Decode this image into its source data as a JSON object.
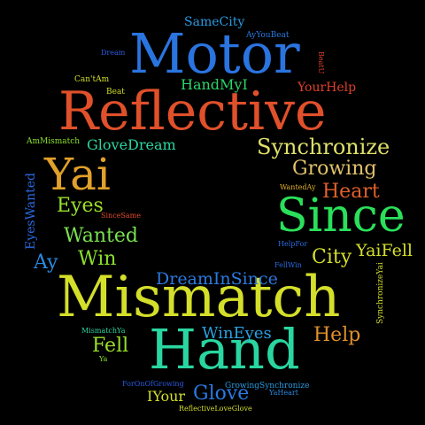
{
  "words": [
    {
      "id": "motor",
      "text": "Motor",
      "color": "#2a74e0"
    },
    {
      "id": "reflective",
      "text": "Reflective",
      "color": "#e0502a"
    },
    {
      "id": "mismatch",
      "text": "Mismatch",
      "color": "#d4df2a"
    },
    {
      "id": "hand",
      "text": "Hand",
      "color": "#2ad6a0"
    },
    {
      "id": "since",
      "text": "Since",
      "color": "#2ae05a"
    },
    {
      "id": "yai",
      "text": "Yai",
      "color": "#e0a02a"
    },
    {
      "id": "synchronize",
      "text": "Synchronize",
      "color": "#dfe06a"
    },
    {
      "id": "growing",
      "text": "Growing",
      "color": "#e0c26a"
    },
    {
      "id": "heart",
      "text": "Heart",
      "color": "#e0602a"
    },
    {
      "id": "city",
      "text": "City",
      "color": "#d4df2a"
    },
    {
      "id": "yaifell",
      "text": "YaiFell",
      "color": "#d4df2a"
    },
    {
      "id": "eyes",
      "text": "Eyes",
      "color": "#9ae02a"
    },
    {
      "id": "wanted",
      "text": "Wanted",
      "color": "#7ae050"
    },
    {
      "id": "win",
      "text": "Win",
      "color": "#8ae02a"
    },
    {
      "id": "ay",
      "text": "Ay",
      "color": "#2a8ae0"
    },
    {
      "id": "dreaminsince",
      "text": "DreamInSince",
      "color": "#2a7ae0"
    },
    {
      "id": "wineyes",
      "text": "WinEyes",
      "color": "#2aa0e0"
    },
    {
      "id": "help",
      "text": "Help",
      "color": "#e0902a"
    },
    {
      "id": "fell",
      "text": "Fell",
      "color": "#9ae02a"
    },
    {
      "id": "glove",
      "text": "Glove",
      "color": "#2a7ae0"
    },
    {
      "id": "iyour",
      "text": "IYour",
      "color": "#d4df2a"
    },
    {
      "id": "handmyi",
      "text": "HandMyI",
      "color": "#2ad66a"
    },
    {
      "id": "yourhelp",
      "text": "YourHelp",
      "color": "#e0402a"
    },
    {
      "id": "glovedream",
      "text": "GloveDream",
      "color": "#2ad6a0"
    },
    {
      "id": "samecity",
      "text": "SameCity",
      "color": "#2a9ae0"
    },
    {
      "id": "ayyoubeat",
      "text": "AyYouBeat",
      "color": "#2a7ae0"
    },
    {
      "id": "dream",
      "text": "Dream",
      "color": "#2a5ae0"
    },
    {
      "id": "cantam",
      "text": "Can'tAm",
      "color": "#d4df2a"
    },
    {
      "id": "beat",
      "text": "Beat",
      "color": "#d4df2a"
    },
    {
      "id": "beatu",
      "text": "BeatU",
      "color": "#e0402a"
    },
    {
      "id": "ammismatch",
      "text": "AmMismatch",
      "color": "#8ae02a"
    },
    {
      "id": "eyeswanted",
      "text": "EyesWanted",
      "color": "#2a6ae0"
    },
    {
      "id": "sincesame",
      "text": "SinceSame",
      "color": "#e04a2a"
    },
    {
      "id": "wantedday",
      "text": "WantedAy",
      "color": "#e0b02a"
    },
    {
      "id": "helpfor",
      "text": "HelpFor",
      "color": "#2a6ae0"
    },
    {
      "id": "fellwin",
      "text": "FellWin",
      "color": "#2a6ae0"
    },
    {
      "id": "synchronizeyai",
      "text": "SynchronizeYai",
      "color": "#d4df2a"
    },
    {
      "id": "mismatchya",
      "text": "MismatchYa",
      "color": "#2ad6a0"
    },
    {
      "id": "ya",
      "text": "Ya",
      "color": "#8ae02a"
    },
    {
      "id": "foronofgrowing",
      "text": "ForOnOfGrowing",
      "color": "#2a5ae0"
    },
    {
      "id": "growingsynchronize",
      "text": "GrowingSynchronize",
      "color": "#2a9ae0"
    },
    {
      "id": "yaheart",
      "text": "YaHeart",
      "color": "#2a8ae0"
    },
    {
      "id": "reflectivelveglove",
      "text": "ReflectiveLoveGlove",
      "color": "#d4df2a"
    }
  ]
}
